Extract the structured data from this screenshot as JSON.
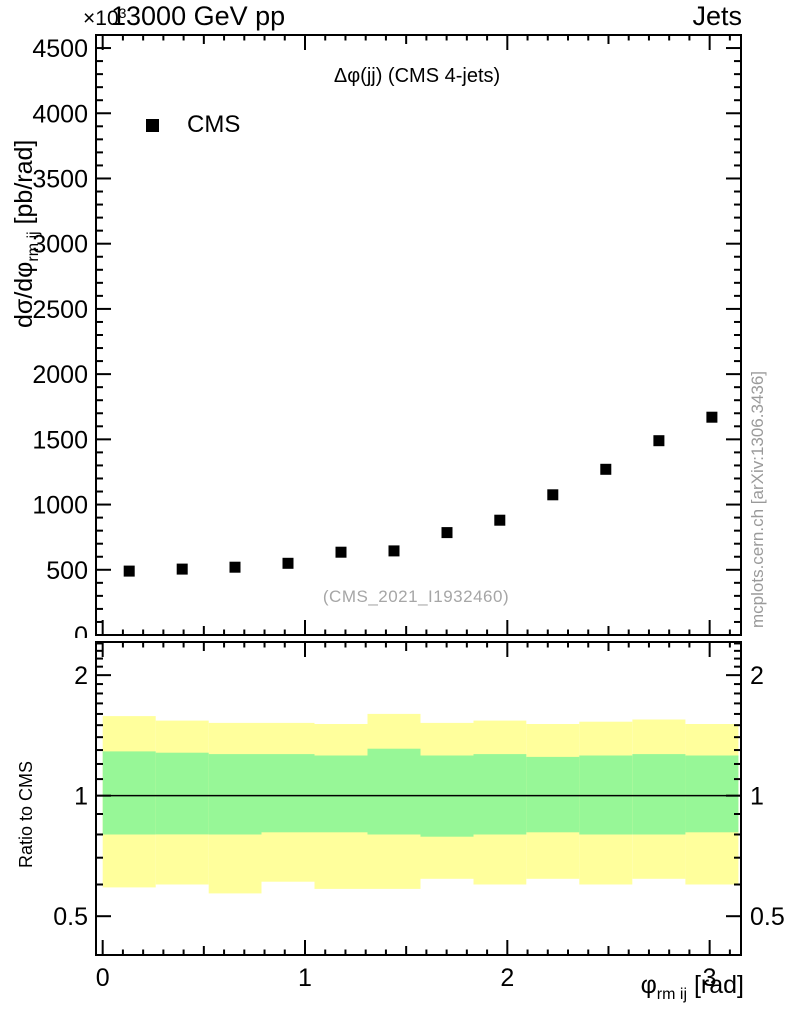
{
  "header": {
    "exponent_base": "×10",
    "exponent_power": "3",
    "title": "13000 GeV pp",
    "right_label": "Jets"
  },
  "main_panel": {
    "subtitle": "Δφ(jj) (CMS 4-jets)",
    "legend": {
      "label": "CMS",
      "marker": "filled-black-square"
    },
    "watermark": "(CMS_2021_I1932460)",
    "y_axis_label": {
      "prefix": "dσ/dφ",
      "subscript": "rm ij",
      "suffix": " [pb/rad]"
    }
  },
  "ratio_panel": {
    "y_axis_label": "Ratio to CMS"
  },
  "footer": {
    "x_axis_label": {
      "prefix": "φ",
      "subscript": "rm ij",
      "suffix": " [rad]"
    }
  },
  "side_note": "mcplots.cern.ch [arXiv:1306.3436]",
  "colors": {
    "band_outer": "#ffff9c",
    "band_inner": "#97f797",
    "marker": "#000000",
    "axis": "#000000",
    "muted_text": "#9a9a9a"
  },
  "chart_data": {
    "type": "scatter",
    "title": "Δφ(jj) (CMS 4-jets)",
    "xlabel": "φ_rm ij [rad]",
    "ylabel": "dσ/dφ_rm ij [pb/rad]",
    "y_multiplier_label": "×10³",
    "xlim": [
      -0.033,
      3.155
    ],
    "ylim": [
      0,
      4600
    ],
    "x_ticks": [
      0,
      1,
      2,
      3
    ],
    "x_mid_step": 0.5,
    "x_minor_step": 0.1,
    "y_ticks": [
      0,
      500,
      1000,
      1500,
      2000,
      2500,
      3000,
      3500,
      4000,
      4500
    ],
    "y_minor_step": 100,
    "grid": false,
    "legend_position": "top-left-inside",
    "x": [
      0.131,
      0.393,
      0.654,
      0.916,
      1.178,
      1.44,
      1.702,
      1.963,
      2.225,
      2.487,
      2.749,
      3.011
    ],
    "series": [
      {
        "name": "CMS",
        "marker": "filled-square",
        "values": [
          490,
          505,
          520,
          550,
          635,
          645,
          785,
          880,
          1075,
          1270,
          1490,
          1670
        ]
      }
    ],
    "ratio": {
      "ylabel": "Ratio to CMS",
      "yscale": "log",
      "ylim": [
        0.4,
        2.42
      ],
      "y_ticks": [
        0.5,
        1,
        2
      ],
      "reference_line": 1,
      "bin_edges": [
        0,
        0.262,
        0.524,
        0.785,
        1.047,
        1.309,
        1.571,
        1.833,
        2.094,
        2.356,
        2.618,
        2.88,
        3.142
      ],
      "yellow_band": {
        "top": [
          1.58,
          1.54,
          1.52,
          1.52,
          1.51,
          1.6,
          1.52,
          1.54,
          1.51,
          1.53,
          1.55,
          1.51
        ],
        "bottom": [
          0.59,
          0.6,
          0.57,
          0.61,
          0.585,
          0.585,
          0.62,
          0.6,
          0.62,
          0.6,
          0.62,
          0.6
        ]
      },
      "green_band": {
        "top": [
          1.29,
          1.28,
          1.27,
          1.27,
          1.26,
          1.31,
          1.26,
          1.27,
          1.25,
          1.26,
          1.27,
          1.26
        ],
        "bottom": [
          0.8,
          0.8,
          0.8,
          0.81,
          0.81,
          0.8,
          0.79,
          0.8,
          0.81,
          0.8,
          0.8,
          0.81
        ]
      }
    }
  }
}
